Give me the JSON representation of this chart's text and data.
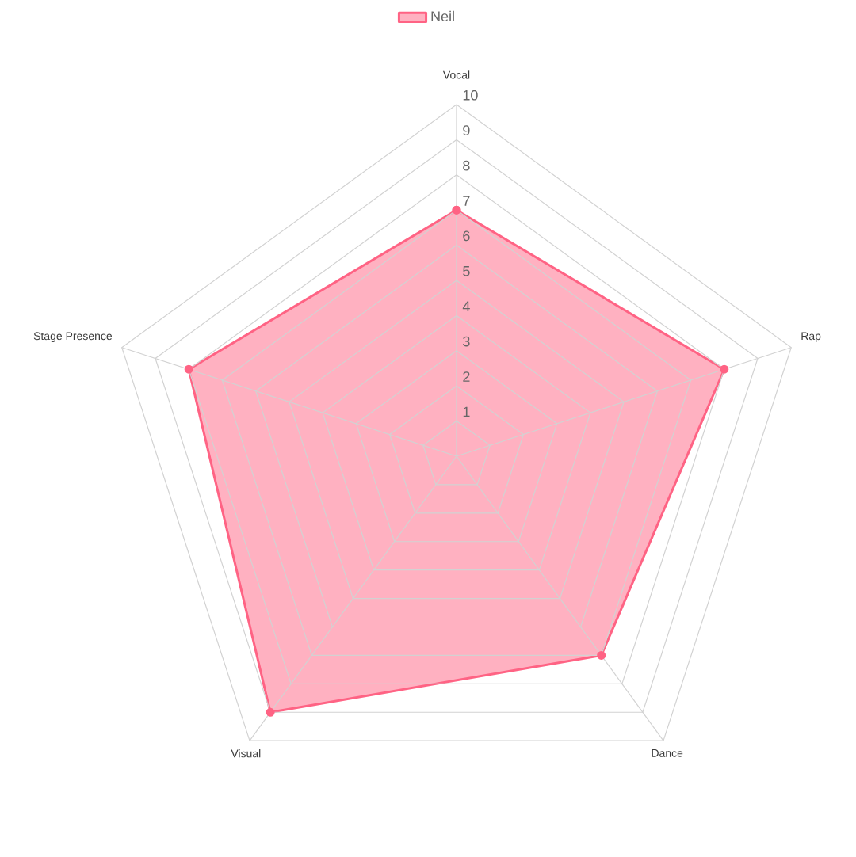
{
  "chart_data": {
    "type": "radar",
    "categories": [
      "Vocal",
      "Rap",
      "Dance",
      "Visual",
      "Stage Presence"
    ],
    "series": [
      {
        "name": "Neil",
        "color": "#ff6384",
        "values": [
          7,
          8,
          7,
          9,
          8
        ]
      }
    ],
    "ylim": [
      0,
      10
    ],
    "yticks": [
      1,
      2,
      3,
      4,
      5,
      6,
      7,
      8,
      9,
      10
    ],
    "grid": true,
    "legend": "top",
    "marker": "circle"
  }
}
